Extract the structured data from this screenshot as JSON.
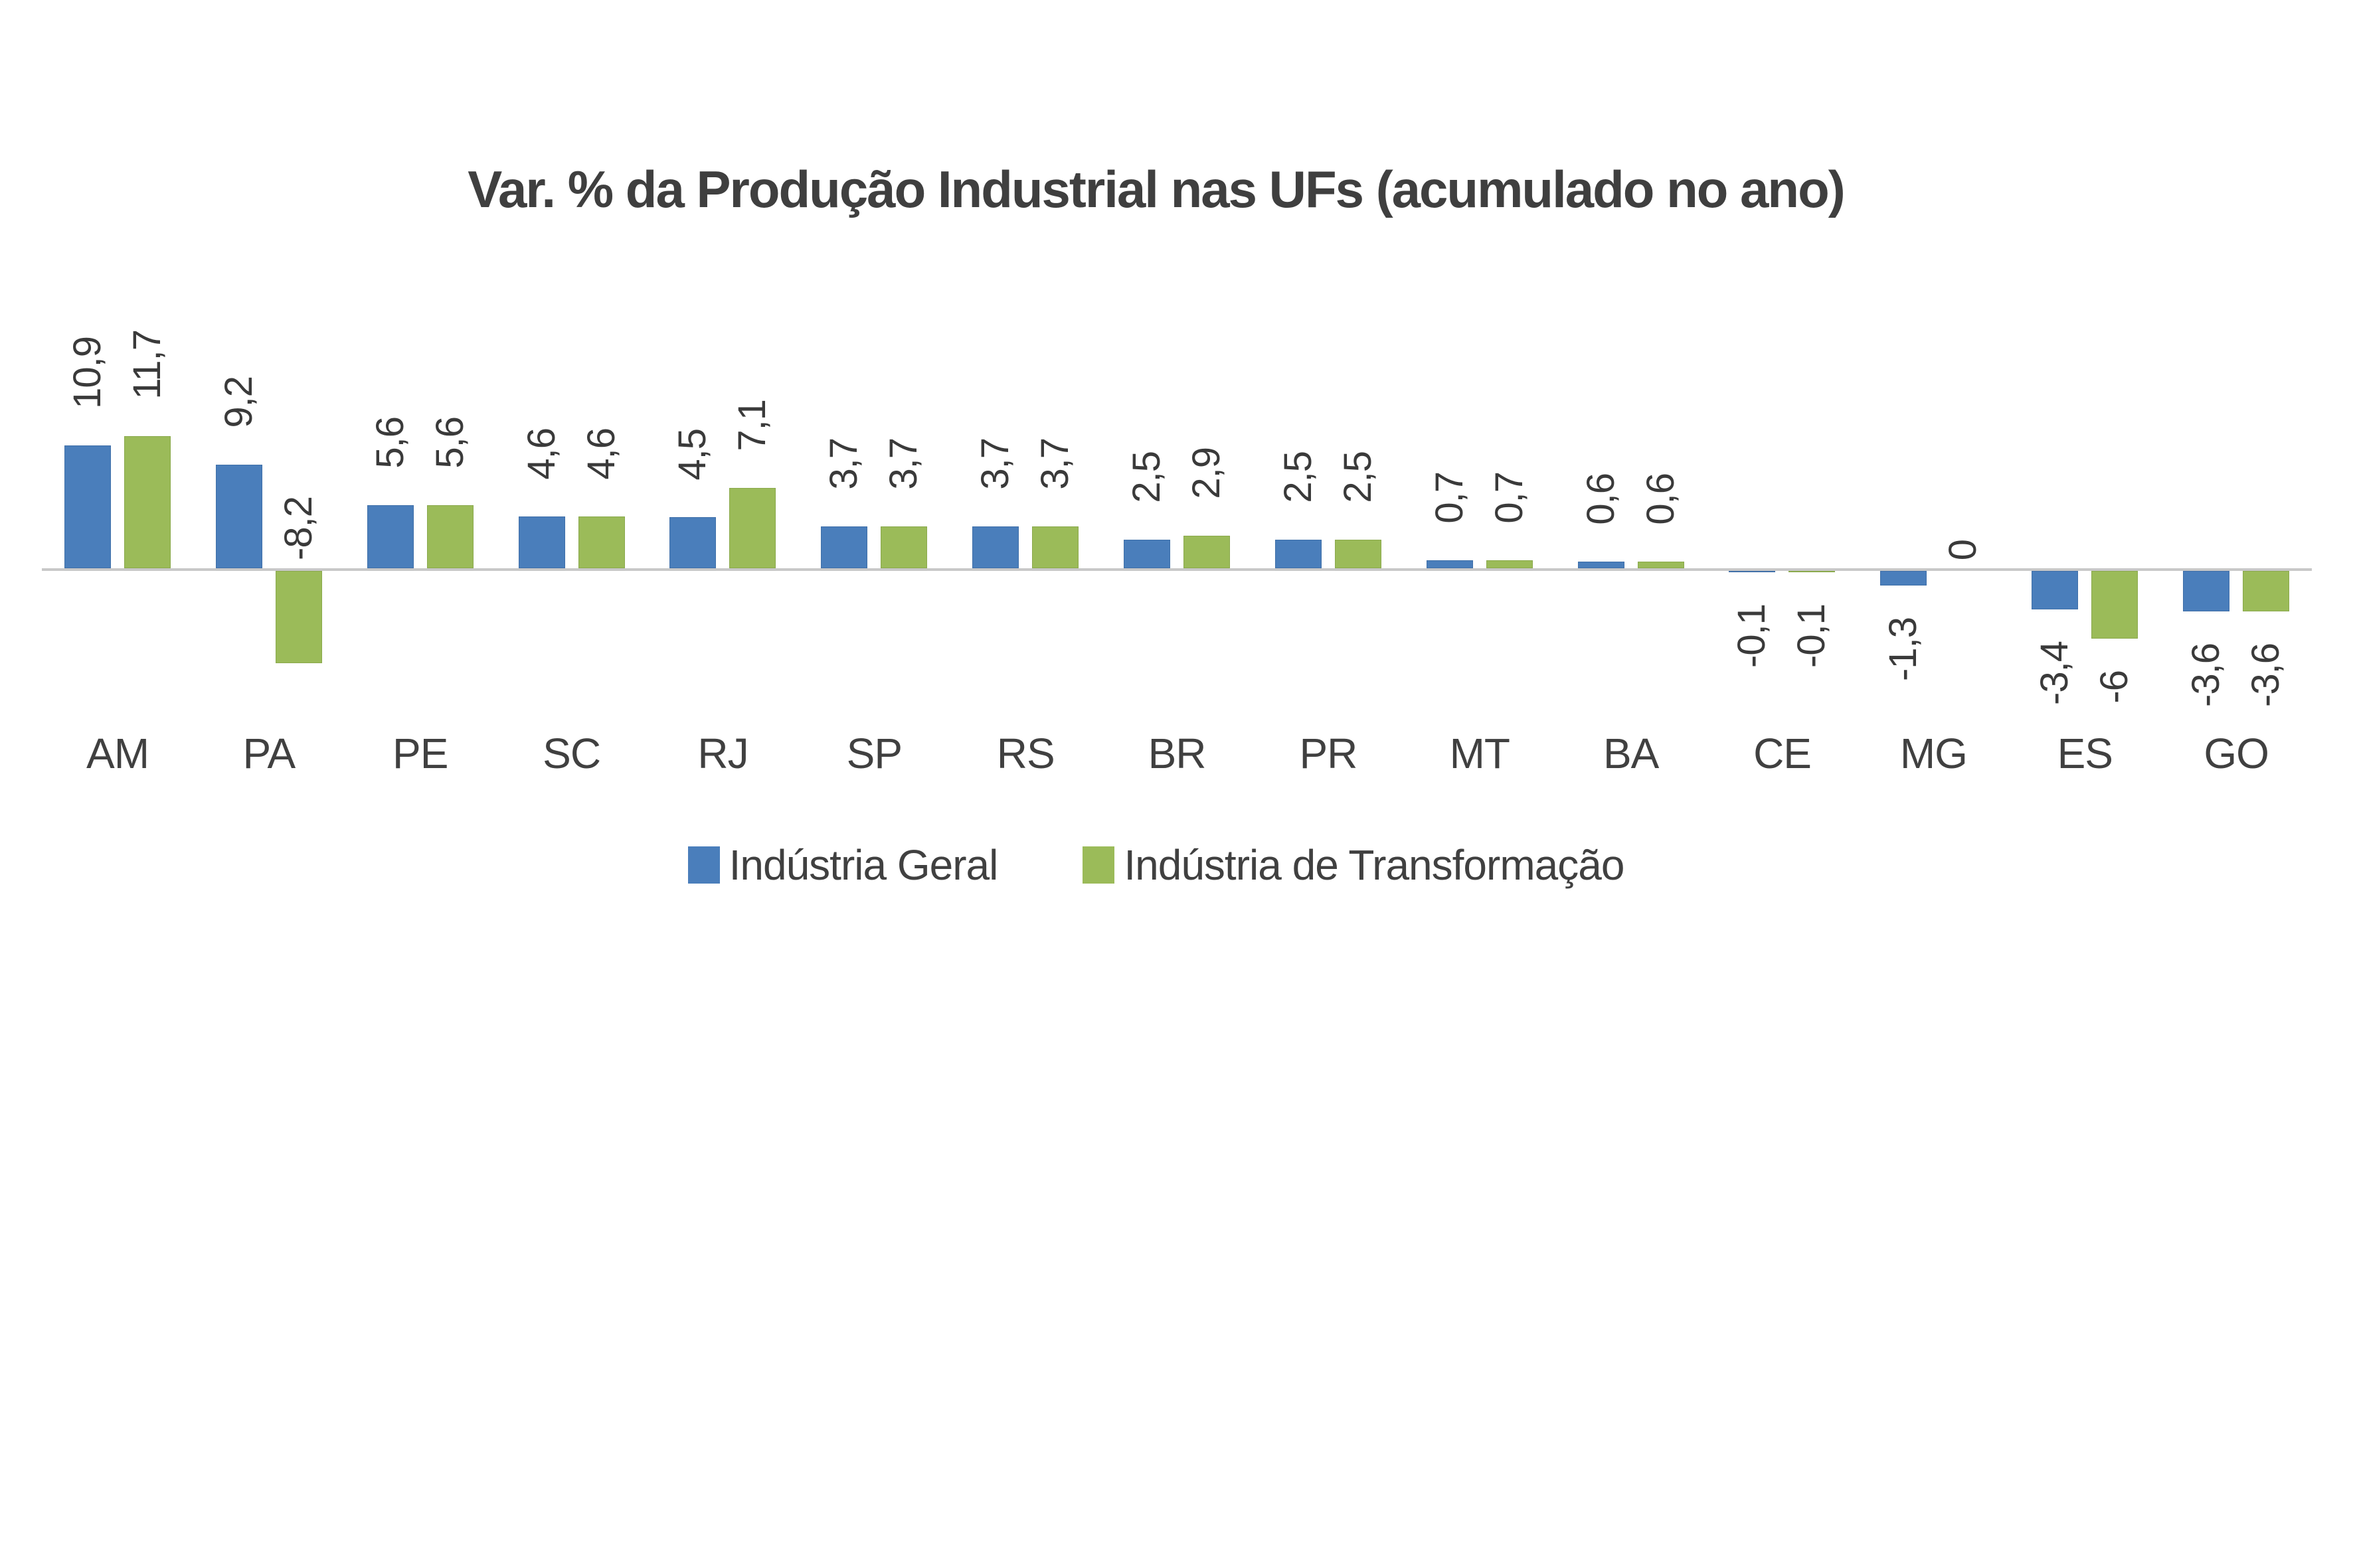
{
  "title": "Var. % da Produção Industrial nas UFs (acumulado no ano)",
  "chart_data": {
    "type": "bar",
    "title": "Var. % da Produção Industrial nas UFs (acumulado no ano)",
    "categories": [
      "AM",
      "PA",
      "PE",
      "SC",
      "RJ",
      "SP",
      "RS",
      "BR",
      "PR",
      "MT",
      "BA",
      "CE",
      "MG",
      "ES",
      "GO"
    ],
    "series": [
      {
        "name": "Indústria Geral",
        "color": "#4a7ebb",
        "points": [
          {
            "value": 10.9,
            "label": "10,9"
          },
          {
            "value": 9.2,
            "label": "9,2"
          },
          {
            "value": 5.6,
            "label": "5,6"
          },
          {
            "value": 4.6,
            "label": "4,6"
          },
          {
            "value": 4.5,
            "label": "4,5"
          },
          {
            "value": 3.7,
            "label": "3,7"
          },
          {
            "value": 3.7,
            "label": "3,7"
          },
          {
            "value": 2.5,
            "label": "2,5"
          },
          {
            "value": 2.5,
            "label": "2,5"
          },
          {
            "value": 0.7,
            "label": "0,7"
          },
          {
            "value": 0.6,
            "label": "0,6"
          },
          {
            "value": -0.1,
            "label": "-0,1"
          },
          {
            "value": -1.3,
            "label": "-1,3"
          },
          {
            "value": -3.4,
            "label": "-3,4"
          },
          {
            "value": -3.6,
            "label": "-3,6"
          }
        ]
      },
      {
        "name": "Indústria de Transformação",
        "color": "#9bbb59",
        "points": [
          {
            "value": 11.7,
            "label": "11,7"
          },
          {
            "value": -8.2,
            "label": "-8,2",
            "label_pos": "above-axis"
          },
          {
            "value": 5.6,
            "label": "5,6"
          },
          {
            "value": 4.6,
            "label": "4,6"
          },
          {
            "value": 7.1,
            "label": "7,1"
          },
          {
            "value": 3.7,
            "label": "3,7"
          },
          {
            "value": 3.7,
            "label": "3,7"
          },
          {
            "value": 2.9,
            "label": "2,9"
          },
          {
            "value": 2.5,
            "label": "2,5"
          },
          {
            "value": 0.7,
            "label": "0,7"
          },
          {
            "value": 0.6,
            "label": "0,6"
          },
          {
            "value": -0.1,
            "label": "-0,1"
          },
          {
            "value": 0,
            "label": "0",
            "label_pos": "above-axis"
          },
          {
            "value": -6,
            "label": "-6"
          },
          {
            "value": -3.6,
            "label": "-3,6"
          }
        ]
      }
    ],
    "value_label_rotation": "90deg counter-clockwise",
    "decimal_separator": ",",
    "ylim": [
      -8.2,
      11.7
    ],
    "gridlines": false,
    "y_axis_visible": false,
    "legend_position": "bottom"
  },
  "legend": {
    "items": [
      {
        "label": "Indústria Geral",
        "color": "#4a7ebb"
      },
      {
        "label": "Indústria de Transformação",
        "color": "#9bbb59"
      }
    ]
  }
}
